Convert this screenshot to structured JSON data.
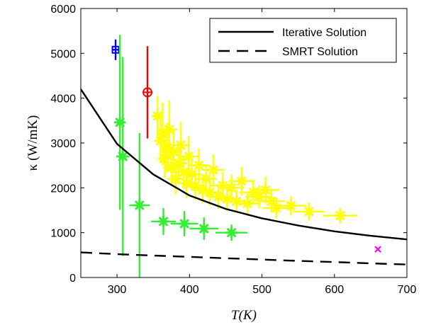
{
  "chart_data": {
    "type": "scatter",
    "xlabel": "T(K)",
    "ylabel": "κ (W/mK)",
    "xlim": [
      250,
      700
    ],
    "ylim": [
      0,
      6000
    ],
    "xticks": [
      300,
      400,
      500,
      600,
      700
    ],
    "yticks": [
      0,
      1000,
      2000,
      3000,
      4000,
      5000,
      6000
    ],
    "legend_position": "top-right",
    "series": [
      {
        "name": "Iterative Solution",
        "kind": "line",
        "style": "solid",
        "color": "#000000",
        "x": [
          250,
          300,
          350,
          400,
          450,
          500,
          550,
          600,
          650,
          700
        ],
        "y": [
          4200,
          2980,
          2300,
          1830,
          1530,
          1320,
          1160,
          1030,
          930,
          850
        ]
      },
      {
        "name": "SMRT Solution",
        "kind": "line",
        "style": "dashed",
        "color": "#000000",
        "x": [
          250,
          300,
          350,
          400,
          450,
          500,
          550,
          600,
          650,
          700
        ],
        "y": [
          560,
          520,
          490,
          460,
          430,
          400,
          370,
          345,
          315,
          290
        ]
      },
      {
        "kind": "points",
        "marker": "square",
        "color": "#0000ff",
        "points": [
          {
            "x": 298,
            "y": 5080,
            "yerr": 230,
            "xerr": 4
          }
        ]
      },
      {
        "kind": "points",
        "marker": "circle-plus",
        "color": "#ff0000",
        "points": [
          {
            "x": 342,
            "y": 4130,
            "yerr": 1030,
            "xerr": 0
          }
        ]
      },
      {
        "kind": "points",
        "marker": "star",
        "color": "#33ee33",
        "points": [
          {
            "x": 304,
            "y": 3460,
            "yerr": 1950,
            "xerr": 7
          },
          {
            "x": 308,
            "y": 2700,
            "yerr": 2220,
            "xerr": 9
          },
          {
            "x": 331,
            "y": 1610,
            "yerr": 1610,
            "xerr": 14
          },
          {
            "x": 364,
            "y": 1250,
            "yerr": 300,
            "xerr": 17
          },
          {
            "x": 393,
            "y": 1200,
            "yerr": 280,
            "xerr": 19
          },
          {
            "x": 420,
            "y": 1090,
            "yerr": 250,
            "xerr": 20
          },
          {
            "x": 458,
            "y": 1000,
            "yerr": 180,
            "xerr": 22
          }
        ]
      },
      {
        "kind": "points",
        "marker": "star",
        "color": "#ffff00",
        "points": [
          {
            "x": 356,
            "y": 3600,
            "yerr": 450,
            "xerr": 8
          },
          {
            "x": 360,
            "y": 3050,
            "yerr": 500,
            "xerr": 9
          },
          {
            "x": 363,
            "y": 3200,
            "yerr": 700,
            "xerr": 9
          },
          {
            "x": 366,
            "y": 2650,
            "yerr": 420,
            "xerr": 10
          },
          {
            "x": 369,
            "y": 2900,
            "yerr": 550,
            "xerr": 10
          },
          {
            "x": 372,
            "y": 3300,
            "yerr": 650,
            "xerr": 11
          },
          {
            "x": 375,
            "y": 2450,
            "yerr": 380,
            "xerr": 11
          },
          {
            "x": 378,
            "y": 2800,
            "yerr": 480,
            "xerr": 12
          },
          {
            "x": 381,
            "y": 2200,
            "yerr": 350,
            "xerr": 12
          },
          {
            "x": 385,
            "y": 2550,
            "yerr": 420,
            "xerr": 12
          },
          {
            "x": 388,
            "y": 2950,
            "yerr": 520,
            "xerr": 13
          },
          {
            "x": 392,
            "y": 2350,
            "yerr": 380,
            "xerr": 13
          },
          {
            "x": 396,
            "y": 2100,
            "yerr": 330,
            "xerr": 13
          },
          {
            "x": 399,
            "y": 2700,
            "yerr": 450,
            "xerr": 14
          },
          {
            "x": 403,
            "y": 2300,
            "yerr": 360,
            "xerr": 14
          },
          {
            "x": 408,
            "y": 2050,
            "yerr": 320,
            "xerr": 14
          },
          {
            "x": 413,
            "y": 2500,
            "yerr": 380,
            "xerr": 15
          },
          {
            "x": 418,
            "y": 1950,
            "yerr": 300,
            "xerr": 15
          },
          {
            "x": 423,
            "y": 2200,
            "yerr": 330,
            "xerr": 15
          },
          {
            "x": 428,
            "y": 1900,
            "yerr": 290,
            "xerr": 16
          },
          {
            "x": 433,
            "y": 2400,
            "yerr": 350,
            "xerr": 16
          },
          {
            "x": 440,
            "y": 1800,
            "yerr": 270,
            "xerr": 16
          },
          {
            "x": 446,
            "y": 2050,
            "yerr": 300,
            "xerr": 17
          },
          {
            "x": 452,
            "y": 1750,
            "yerr": 260,
            "xerr": 17
          },
          {
            "x": 458,
            "y": 2000,
            "yerr": 290,
            "xerr": 17
          },
          {
            "x": 465,
            "y": 1700,
            "yerr": 250,
            "xerr": 18
          },
          {
            "x": 472,
            "y": 2150,
            "yerr": 320,
            "xerr": 18
          },
          {
            "x": 480,
            "y": 1650,
            "yerr": 240,
            "xerr": 18
          },
          {
            "x": 488,
            "y": 1900,
            "yerr": 280,
            "xerr": 19
          },
          {
            "x": 496,
            "y": 1800,
            "yerr": 260,
            "xerr": 19
          },
          {
            "x": 505,
            "y": 1950,
            "yerr": 300,
            "xerr": 19
          },
          {
            "x": 513,
            "y": 1700,
            "yerr": 250,
            "xerr": 20
          },
          {
            "x": 520,
            "y": 1550,
            "yerr": 230,
            "xerr": 20
          },
          {
            "x": 540,
            "y": 1600,
            "yerr": 220,
            "xerr": 21
          },
          {
            "x": 565,
            "y": 1470,
            "yerr": 200,
            "xerr": 22
          },
          {
            "x": 608,
            "y": 1380,
            "yerr": 180,
            "xerr": 24
          }
        ]
      },
      {
        "kind": "points",
        "marker": "x",
        "color": "#ff00ff",
        "points": [
          {
            "x": 660,
            "y": 630,
            "yerr": 0,
            "xerr": 0
          }
        ]
      }
    ]
  }
}
